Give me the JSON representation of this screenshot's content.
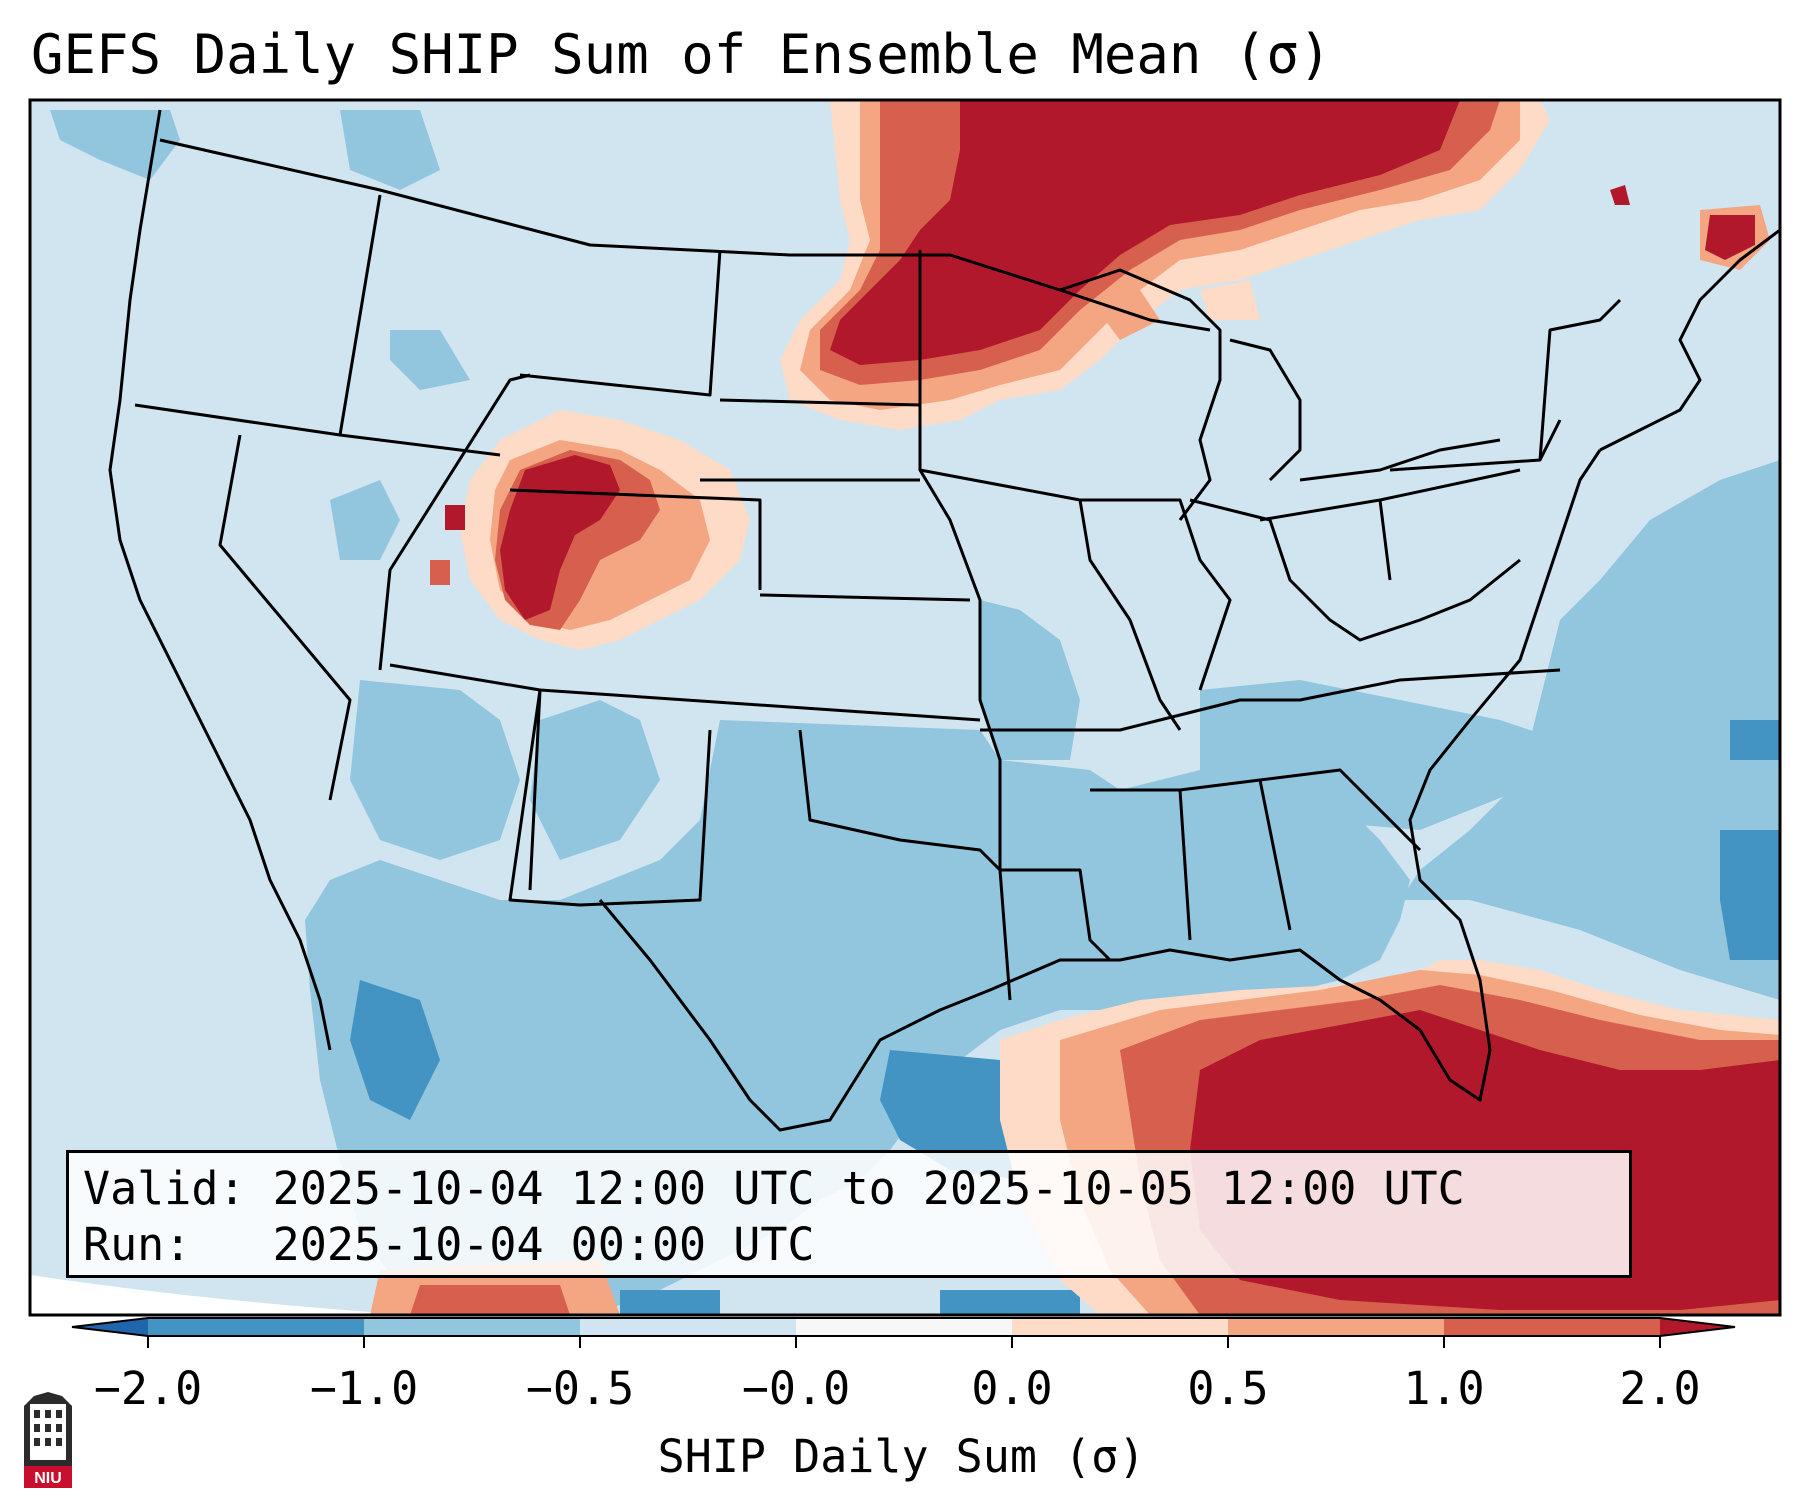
{
  "title": "GEFS Daily SHIP Sum of Ensemble Mean (σ)",
  "info_box": {
    "valid_label": "Valid:",
    "valid_value": "2025-10-04 12:00 UTC to 2025-10-05 12:00 UTC",
    "run_label": "Run:",
    "run_value": "2025-10-04 00:00 UTC"
  },
  "colorbar": {
    "label": "SHIP Daily Sum (σ)",
    "ticks": [
      "−2.0",
      "−1.0",
      "−0.5",
      "−0.0",
      "0.0",
      "0.5",
      "1.0",
      "2.0"
    ],
    "bins": [
      {
        "range": "<-2.0",
        "color": "#2166ac"
      },
      {
        "range": "-2.0 to -1.0",
        "color": "#4393c3"
      },
      {
        "range": "-1.0 to -0.5",
        "color": "#92c5de"
      },
      {
        "range": "-0.5 to -0.0",
        "color": "#d1e5f0"
      },
      {
        "range": "-0.0 to 0.0",
        "color": "#f7f7f7"
      },
      {
        "range": "0.0 to 0.5",
        "color": "#fddbc7"
      },
      {
        "range": "0.5 to 1.0",
        "color": "#f4a582"
      },
      {
        "range": "1.0 to 2.0",
        "color": "#d6604d"
      },
      {
        "range": ">2.0",
        "color": "#b2182b"
      }
    ]
  },
  "map": {
    "region": "Contiguous United States",
    "highlights": [
      {
        "area": "Northern Minnesota / Lake Superior / Ontario",
        "category": ">2.0"
      },
      {
        "area": "Wyoming / Northern Colorado",
        "category": ">2.0"
      },
      {
        "area": "Gulf of Mexico / Florida / Caribbean",
        "category": ">2.0"
      },
      {
        "area": "Texas / Southern Plains",
        "category": "-1.0 to -0.5"
      }
    ]
  },
  "logo": {
    "text": "NIU"
  }
}
